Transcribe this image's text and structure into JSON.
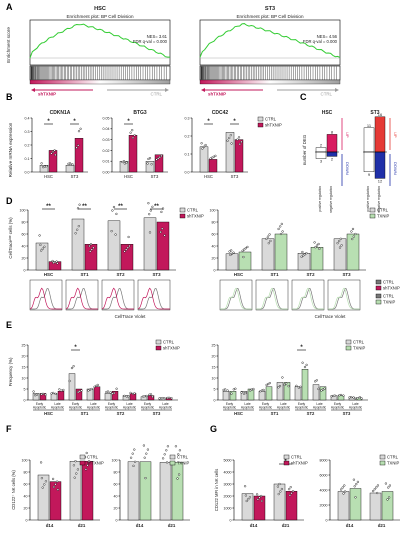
{
  "colors": {
    "ctrl": "#d9d9d9",
    "shtxnip": "#c2185b",
    "txnip": "#b8dfb2",
    "gsea_line": "#33cc33",
    "deg_up_magenta": "#d81b60",
    "deg_up_red": "#e53935",
    "deg_down": "#1f2fa8",
    "ctrl_arrow": "#9e9e9e"
  },
  "chart_data": [
    {
      "panel": "A",
      "type": "line",
      "subplots": [
        {
          "title": "HSC",
          "subtitle": "Enrichment plot: BP Cell Division",
          "nes": "NES= 3.61",
          "fdr": "FDR q-val = 0.000",
          "left_label": "shTXNIP",
          "right_label": "CTRL"
        },
        {
          "title": "ST3",
          "subtitle": "Enrichment plot: BP Cell Division",
          "nes": "NES= 4.56",
          "fdr": "FDR q-val = 0.000",
          "left_label": "shTXNIP",
          "right_label": "CTRL"
        }
      ],
      "ylabel": "Enrichment score"
    },
    {
      "panel": "B",
      "type": "bar",
      "ylabel": "Relative mRNA expression",
      "legend": [
        "CTRL",
        "shTXNIP"
      ],
      "subplots": [
        {
          "title": "CDKN1A",
          "categories": [
            "HSC",
            "ST3"
          ],
          "series": [
            {
              "name": "CTRL",
              "values": [
                0.05,
                0.05
              ]
            },
            {
              "name": "shTXNIP",
              "values": [
                0.16,
                0.25
              ]
            }
          ],
          "ylim": [
            0,
            0.4
          ],
          "yticks": [
            "0.0",
            "0.1",
            "0.2",
            "0.3",
            "0.4"
          ],
          "sig": [
            "*",
            "*"
          ]
        },
        {
          "title": "BTG3",
          "categories": [
            "HSC",
            "ST3"
          ],
          "series": [
            {
              "name": "CTRL",
              "values": [
                0.01,
                0.01
              ]
            },
            {
              "name": "shTXNIP",
              "values": [
                0.034,
                0.016
              ]
            }
          ],
          "ylim": [
            0,
            0.05
          ],
          "yticks": [
            "0.00",
            "0.01",
            "0.02",
            "0.03",
            "0.04",
            "0.05"
          ],
          "sig": [
            "*",
            ""
          ]
        },
        {
          "title": "CDC42",
          "categories": [
            "HSC",
            "ST3"
          ],
          "series": [
            {
              "name": "CTRL",
              "values": [
                0.14,
                0.22
              ]
            },
            {
              "name": "shTXNIP",
              "values": [
                0.07,
                0.18
              ]
            }
          ],
          "ylim": [
            0,
            0.3
          ],
          "yticks": [
            "0.0",
            "0.1",
            "0.2",
            "0.3"
          ],
          "sig": [
            "*",
            "*"
          ]
        }
      ]
    },
    {
      "panel": "C",
      "type": "bar",
      "ylabel": "number of DEG",
      "subplots": [
        {
          "title": "HSC",
          "categories": [
            "positive regulation",
            "negative regulation"
          ],
          "up": [
            2,
            8
          ],
          "down": [
            3,
            2
          ]
        },
        {
          "title": "ST3",
          "categories": [
            "positive regulation",
            "negative regulation"
          ],
          "up": [
            11,
            16
          ],
          "down": [
            9,
            12
          ]
        }
      ],
      "labels": {
        "up": "UP",
        "down": "DOWN"
      }
    },
    {
      "panel": "D",
      "type": "bar",
      "ylabel": "CellTraceˡᵒʷ cells (%)",
      "xlabel": "CellTrace Violet",
      "categories": [
        "HSC",
        "ST1",
        "ST2",
        "ST3"
      ],
      "subplots": [
        {
          "legend": [
            "CTRL",
            "shTXNIP"
          ],
          "series": [
            {
              "name": "CTRL",
              "values": [
                45,
                85,
                82,
                87
              ]
            },
            {
              "name": "shTXNIP",
              "values": [
                14,
                43,
                43,
                80
              ]
            }
          ],
          "sig": [
            "**",
            "**",
            "**",
            "**"
          ],
          "ylim": [
            0,
            100
          ]
        },
        {
          "legend": [
            "CTRL",
            "TXNIP"
          ],
          "series": [
            {
              "name": "CTRL",
              "values": [
                27,
                52,
                28,
                52
              ]
            },
            {
              "name": "TXNIP",
              "values": [
                30,
                60,
                38,
                60
              ]
            }
          ],
          "sig": [
            "",
            "",
            "",
            ""
          ],
          "ylim": [
            0,
            100
          ]
        }
      ],
      "yticks": [
        "0",
        "20",
        "40",
        "60",
        "80",
        "100"
      ],
      "histogram_legends": [
        [
          "CTRL",
          "shTXNIP",
          "CTRL",
          "TXNIP"
        ]
      ]
    },
    {
      "panel": "E",
      "type": "bar",
      "ylabel": "Frequency (%)",
      "groups": [
        "HSC",
        "ST1",
        "ST2",
        "ST3"
      ],
      "subgroups": [
        "Early Apoptotic",
        "Late Apoptotic"
      ],
      "subplots": [
        {
          "legend": [
            "CTRL",
            "shTXNIP"
          ],
          "series": [
            {
              "name": "CTRL",
              "values": [
                3,
                3,
                12,
                5,
                3,
                2,
                1.5,
                1
              ]
            },
            {
              "name": "shTXNIP",
              "values": [
                3,
                4,
                5,
                6,
                4,
                3,
                2,
                1
              ]
            }
          ],
          "sig_index": 2
        },
        {
          "legend": [
            "CTRL",
            "TXNIP"
          ],
          "series": [
            {
              "name": "CTRL",
              "values": [
                4,
                4,
                4,
                8,
                6,
                7,
                2,
                1
              ]
            },
            {
              "name": "TXNIP",
              "values": [
                4,
                5,
                6,
                8,
                14,
                6,
                2,
                1
              ]
            }
          ],
          "sig_index": 4
        }
      ],
      "yticks": [
        "0",
        "5",
        "10",
        "15",
        "20",
        "25"
      ],
      "ylim": [
        0,
        25
      ]
    },
    {
      "panel": "F",
      "type": "bar",
      "ylabel": "CD122⁺ NK cells (%)",
      "categories": [
        "d14",
        "d21"
      ],
      "subplots": [
        {
          "legend": [
            "CTRL",
            "shTXNIP"
          ],
          "series": [
            {
              "name": "CTRL",
              "values": [
                75,
                98
              ]
            },
            {
              "name": "shTXNIP",
              "values": [
                64,
                98
              ]
            }
          ]
        },
        {
          "legend": [
            "CTRL",
            "TXNIP"
          ],
          "series": [
            {
              "name": "CTRL",
              "values": [
                97,
                96
              ]
            },
            {
              "name": "TXNIP",
              "values": [
                97,
                96
              ]
            }
          ]
        }
      ],
      "yticks": [
        "0",
        "20",
        "40",
        "60",
        "80",
        "100"
      ],
      "ylim": [
        0,
        100
      ]
    },
    {
      "panel": "G",
      "type": "bar",
      "ylabel": "CD122 MFI in NK cells",
      "categories": [
        "d14",
        "d21"
      ],
      "subplots": [
        {
          "legend": [
            "CTRL",
            "shTXNIP"
          ],
          "series": [
            {
              "name": "CTRL",
              "values": [
                2200,
                3000
              ]
            },
            {
              "name": "shTXNIP",
              "values": [
                2000,
                2400
              ]
            }
          ],
          "sig": [
            "",
            "*"
          ],
          "ylim": [
            0,
            5000
          ],
          "yticks": [
            "0",
            "1000",
            "2000",
            "3000",
            "4000",
            "5000"
          ]
        },
        {
          "legend": [
            "CTRL",
            "TXNIP"
          ],
          "series": [
            {
              "name": "CTRL",
              "values": [
                3800,
                3600
              ]
            },
            {
              "name": "TXNIP",
              "values": [
                4200,
                3800
              ]
            }
          ],
          "sig": [
            "",
            ""
          ],
          "ylim": [
            0,
            8000
          ],
          "yticks": [
            "0",
            "2000",
            "4000",
            "6000",
            "8000"
          ]
        }
      ]
    }
  ]
}
